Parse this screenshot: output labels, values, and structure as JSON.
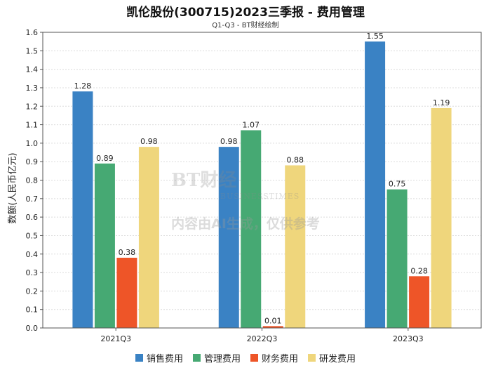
{
  "chart_data": {
    "type": "bar",
    "title": "凯伦股份(300715)2023三季报 - 费用管理",
    "subtitle": "Q1-Q3 - BT财经绘制",
    "ylabel": "数额(人民币亿元)",
    "xlabel": "",
    "categories": [
      "2021Q3",
      "2022Q3",
      "2023Q3"
    ],
    "ylim": [
      0,
      1.6
    ],
    "yticks": [
      "0.0",
      "0.1",
      "0.2",
      "0.3",
      "0.4",
      "0.5",
      "0.6",
      "0.7",
      "0.8",
      "0.9",
      "1.0",
      "1.1",
      "1.2",
      "1.3",
      "1.4",
      "1.5",
      "1.6"
    ],
    "grid": true,
    "legend_position": "bottom",
    "series": [
      {
        "name": "销售费用",
        "color": "#3a82c4",
        "values": [
          1.28,
          0.98,
          1.55
        ],
        "labels": [
          "1.28",
          "0.98",
          "1.55"
        ]
      },
      {
        "name": "管理费用",
        "color": "#46a973",
        "values": [
          0.89,
          1.07,
          0.75
        ],
        "labels": [
          "0.89",
          "1.07",
          "0.75"
        ]
      },
      {
        "name": "财务费用",
        "color": "#ee5528",
        "values": [
          0.38,
          0.01,
          0.28
        ],
        "labels": [
          "0.38",
          "0.01",
          "0.28"
        ]
      },
      {
        "name": "研发费用",
        "color": "#efd67c",
        "values": [
          0.98,
          0.88,
          1.19
        ],
        "labels": [
          "0.98",
          "0.88",
          "1.19"
        ]
      }
    ]
  },
  "watermark": {
    "logo_text": "BT财经",
    "logo_subtext": "BUSINESSTIMES",
    "note": "内容由AI生成，仅供参考"
  }
}
